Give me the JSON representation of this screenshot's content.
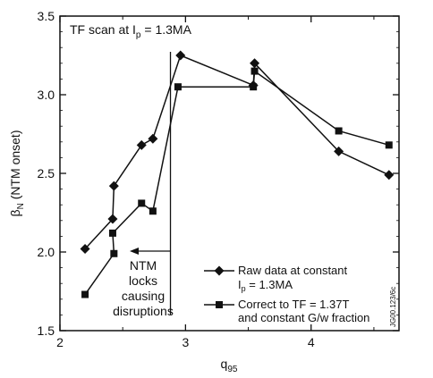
{
  "chart_data": {
    "type": "line",
    "title": "TF scan at I",
    "title_sub": "p",
    "title_tail": " = 1.3MA",
    "xlabel": "q",
    "xlabel_sub": "95",
    "ylabel": "β",
    "ylabel_sub": "N",
    "ylabel_tail": " (NTM onset)",
    "xlim": [
      2,
      4.7
    ],
    "ylim": [
      1.5,
      3.5
    ],
    "x_ticks": [
      2,
      3,
      4
    ],
    "y_ticks": [
      1.5,
      2.0,
      2.5,
      3.0,
      3.5
    ],
    "x_tick_labels": [
      "2",
      "3",
      "4"
    ],
    "y_tick_labels": [
      "1.5",
      "2.0",
      "2.5",
      "3.0",
      "3.5"
    ],
    "series": [
      {
        "name": "Raw data at constant",
        "name_line2": "I",
        "name_line2_sub": "p",
        "name_line2_tail": " = 1.3MA",
        "marker": "diamond",
        "points": [
          [
            2.2,
            2.02
          ],
          [
            2.42,
            2.21
          ],
          [
            2.43,
            2.42
          ],
          [
            2.65,
            2.68
          ],
          [
            2.74,
            2.72
          ],
          [
            2.96,
            3.25
          ],
          [
            3.54,
            3.06
          ],
          [
            3.55,
            3.2
          ],
          [
            4.22,
            2.64
          ],
          [
            4.62,
            2.49
          ]
        ]
      },
      {
        "name": "Correct to TF = 1.37T",
        "name_line2": "and constant G/w fraction",
        "marker": "square",
        "points": [
          [
            2.2,
            1.73
          ],
          [
            2.43,
            1.99
          ],
          [
            2.42,
            2.12
          ],
          [
            2.65,
            2.31
          ],
          [
            2.74,
            2.26
          ],
          [
            2.94,
            3.05
          ],
          [
            3.54,
            3.05
          ],
          [
            3.55,
            3.15
          ],
          [
            4.22,
            2.77
          ],
          [
            4.62,
            2.68
          ]
        ]
      }
    ],
    "annotation": [
      "NTM",
      "locks",
      "causing",
      "disruptions"
    ],
    "annotation_marker_x": 2.88,
    "figure_code": "JG00.123/6c"
  }
}
